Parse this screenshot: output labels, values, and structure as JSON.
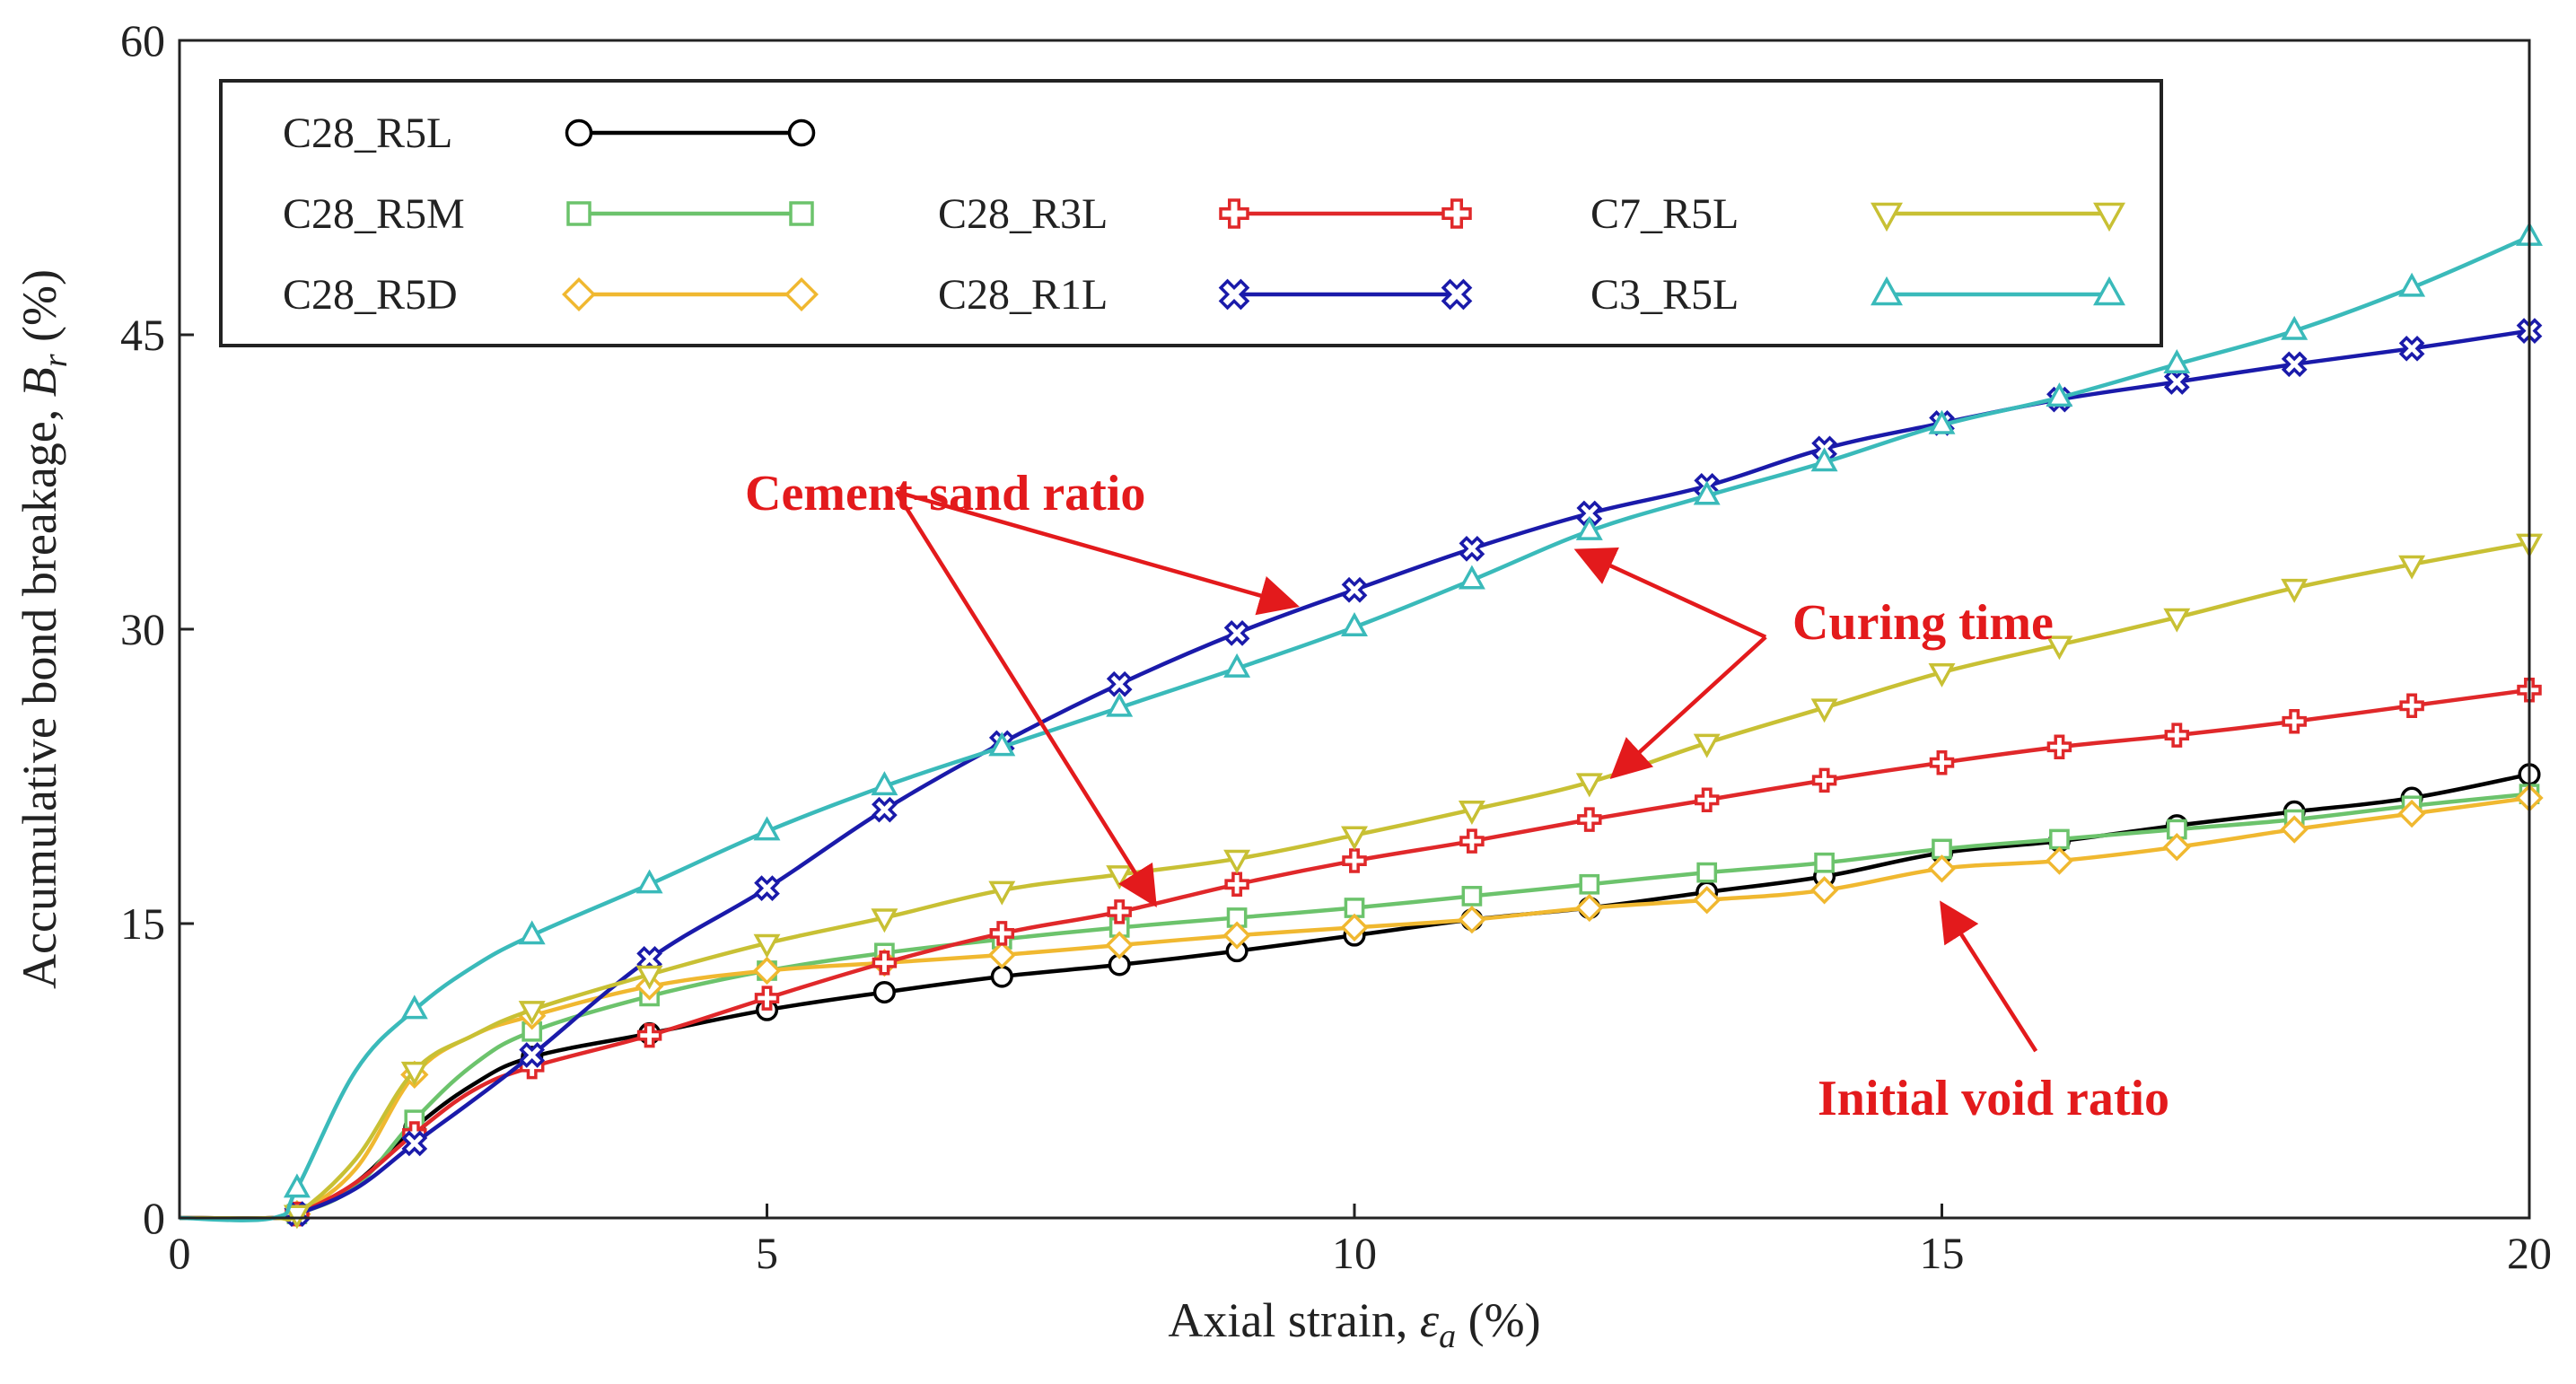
{
  "chart_data": {
    "type": "line",
    "xlabel": "Axial strain, ε_a (%)",
    "xlabel_parts": {
      "main": "Axial strain, ",
      "symbol": "ε",
      "sub": "a",
      "unit": " (%)"
    },
    "ylabel": "Accumulative bond breakage, B_r (%)",
    "ylabel_parts": {
      "main": "Accumulative bond breakage, ",
      "symbol": "B",
      "sub": "r",
      "unit": " (%)"
    },
    "xlim": [
      0,
      20
    ],
    "ylim": [
      0,
      60
    ],
    "xticks": [
      "0",
      "5",
      "10",
      "15",
      "20"
    ],
    "yticks": [
      "0",
      "15",
      "30",
      "45",
      "60"
    ],
    "legend_position": "top-left",
    "series": [
      {
        "name": "C28_R5L",
        "color": "#000000",
        "marker": "circle",
        "x": [
          0,
          0.8,
          1,
          1.5,
          2,
          2.5,
          3,
          4,
          5,
          6,
          7,
          8,
          9,
          10,
          11,
          12,
          13,
          14,
          15,
          16,
          17,
          18,
          19,
          20
        ],
        "y": [
          0,
          0,
          0.2,
          1.8,
          4.6,
          6.8,
          8.2,
          9.4,
          10.6,
          11.5,
          12.3,
          12.9,
          13.6,
          14.4,
          15.2,
          15.8,
          16.6,
          17.4,
          18.6,
          19.2,
          20.0,
          20.7,
          21.4,
          22.6
        ]
      },
      {
        "name": "C28_R5M",
        "color": "#6cc36c",
        "marker": "square",
        "x": [
          0,
          0.8,
          1,
          1.5,
          2,
          2.5,
          3,
          4,
          5,
          6,
          7,
          8,
          9,
          10,
          11,
          12,
          13,
          14,
          15,
          16,
          17,
          18,
          19,
          20
        ],
        "y": [
          0,
          0,
          0.2,
          1.6,
          5.0,
          7.8,
          9.5,
          11.3,
          12.6,
          13.5,
          14.2,
          14.8,
          15.3,
          15.8,
          16.4,
          17.0,
          17.6,
          18.1,
          18.8,
          19.3,
          19.8,
          20.3,
          21.0,
          21.6
        ]
      },
      {
        "name": "C28_R5D",
        "color": "#f0b830",
        "marker": "diamond",
        "x": [
          0,
          0.8,
          1,
          1.5,
          2,
          2.5,
          3,
          4,
          5,
          6,
          7,
          8,
          9,
          10,
          11,
          12,
          13,
          14,
          15,
          16,
          17,
          18,
          19,
          20
        ],
        "y": [
          0,
          0,
          0.2,
          2.5,
          7.3,
          9.3,
          10.3,
          11.8,
          12.6,
          13.0,
          13.4,
          13.9,
          14.4,
          14.8,
          15.2,
          15.8,
          16.2,
          16.7,
          17.8,
          18.2,
          18.9,
          19.8,
          20.6,
          21.4
        ]
      },
      {
        "name": "C28_R3L",
        "color": "#e0282a",
        "marker": "plus",
        "x": [
          0,
          0.8,
          1,
          1.5,
          2,
          2.5,
          3,
          4,
          5,
          6,
          7,
          8,
          9,
          10,
          11,
          12,
          13,
          14,
          15,
          16,
          17,
          18,
          19,
          20
        ],
        "y": [
          0,
          0,
          0.2,
          1.8,
          4.3,
          6.5,
          7.7,
          9.3,
          11.2,
          13.0,
          14.5,
          15.6,
          17.0,
          18.2,
          19.2,
          20.3,
          21.3,
          22.3,
          23.2,
          24.0,
          24.6,
          25.3,
          26.1,
          26.9
        ]
      },
      {
        "name": "C28_R1L",
        "color": "#1a1aaa",
        "marker": "x",
        "x": [
          0,
          0.8,
          1,
          1.5,
          2,
          2.5,
          3,
          4,
          5,
          6,
          7,
          8,
          9,
          10,
          11,
          12,
          13,
          14,
          15,
          16,
          17,
          18,
          19,
          20
        ],
        "y": [
          0,
          0,
          0.2,
          1.5,
          3.8,
          6.0,
          8.3,
          13.2,
          16.8,
          20.8,
          24.2,
          27.2,
          29.8,
          32.0,
          34.1,
          35.9,
          37.3,
          39.2,
          40.5,
          41.7,
          42.6,
          43.5,
          44.3,
          45.2
        ]
      },
      {
        "name": "C7_R5L",
        "color": "#c8c034",
        "marker": "triangle-down",
        "x": [
          0,
          0.8,
          1,
          1.5,
          2,
          2.5,
          3,
          4,
          5,
          6,
          7,
          8,
          9,
          10,
          11,
          12,
          13,
          14,
          15,
          16,
          17,
          18,
          19,
          20
        ],
        "y": [
          0,
          0,
          0.2,
          3.0,
          7.5,
          9.3,
          10.6,
          12.4,
          14.0,
          15.3,
          16.7,
          17.5,
          18.3,
          19.5,
          20.8,
          22.2,
          24.2,
          26.0,
          27.8,
          29.2,
          30.6,
          32.1,
          33.3,
          34.4
        ]
      },
      {
        "name": "C3_R5L",
        "color": "#3ababa",
        "marker": "triangle-up",
        "x": [
          0,
          0.8,
          1,
          1.5,
          2,
          2.5,
          3,
          4,
          5,
          6,
          7,
          8,
          9,
          10,
          11,
          12,
          13,
          14,
          15,
          16,
          17,
          18,
          19,
          20
        ],
        "y": [
          0,
          0,
          1.5,
          7.5,
          10.6,
          12.8,
          14.4,
          17.0,
          19.7,
          22.0,
          24.0,
          26.0,
          28.0,
          30.1,
          32.5,
          35.0,
          36.8,
          38.5,
          40.4,
          41.8,
          43.5,
          45.2,
          47.4,
          50.0
        ]
      }
    ],
    "legend_layout": [
      [
        "C28_R5L"
      ],
      [
        "C28_R5M",
        "C28_R3L",
        "C7_R5L"
      ],
      [
        "C28_R5D",
        "C28_R1L",
        "C3_R5L"
      ]
    ],
    "annotations": [
      {
        "id": "cement",
        "text": "Cement-sand ratio",
        "color": "#e31a1c",
        "anchor": [
          6.1,
          37.0
        ],
        "targets": [
          [
            9.5,
            31.2
          ],
          [
            8.3,
            16.0
          ]
        ]
      },
      {
        "id": "curing",
        "text": "Curing time",
        "color": "#e31a1c",
        "anchor": [
          13.5,
          29.6
        ],
        "targets": [
          [
            11.9,
            34.0
          ],
          [
            12.2,
            22.5
          ]
        ]
      },
      {
        "id": "void",
        "text": "Initial void ratio",
        "color": "#e31a1c",
        "anchor": [
          15.8,
          8.5
        ],
        "targets": [
          [
            15.0,
            16.0
          ]
        ]
      }
    ]
  }
}
